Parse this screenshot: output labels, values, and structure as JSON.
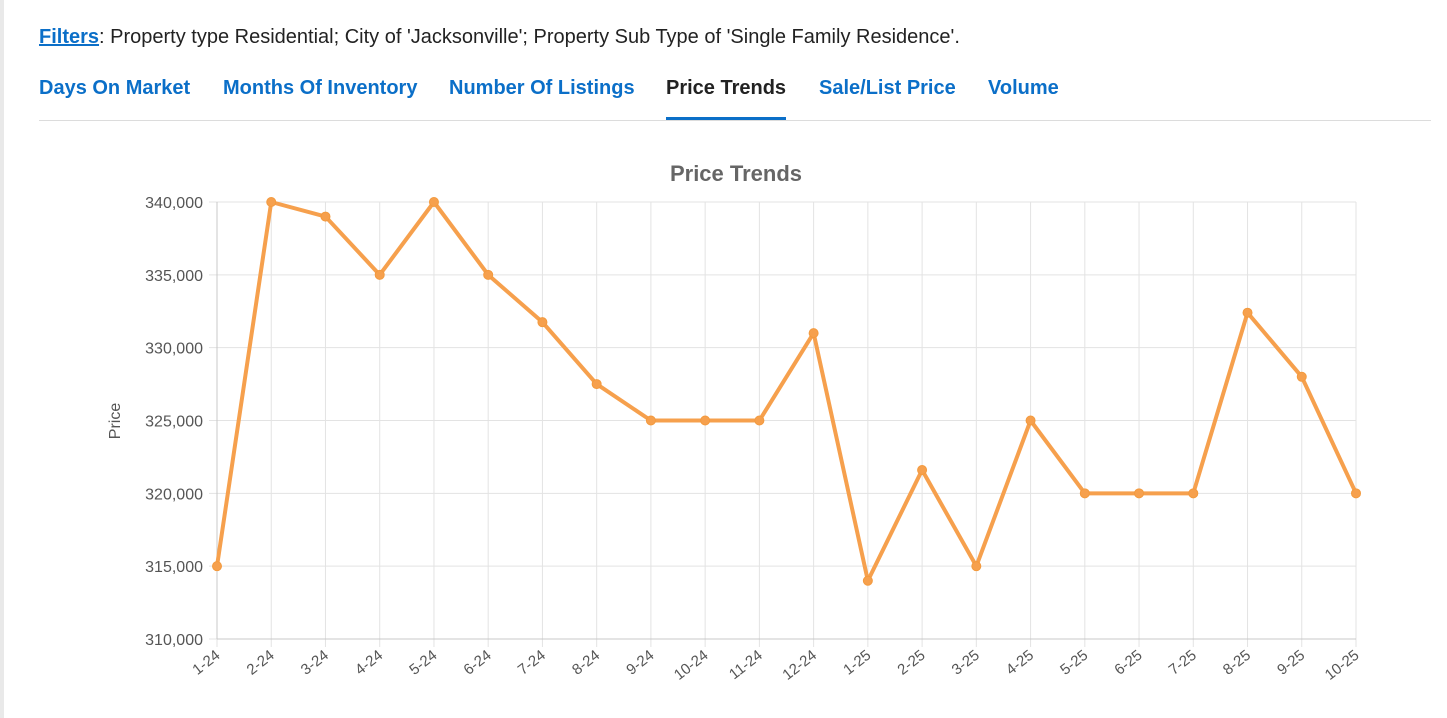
{
  "filters": {
    "link_label": "Filters",
    "text": ": Property type Residential; City of 'Jacksonville'; Property Sub Type of 'Single Family Residence'."
  },
  "tabs": [
    {
      "label": "Days On Market",
      "active": false
    },
    {
      "label": "Months Of Inventory",
      "active": false
    },
    {
      "label": "Number Of Listings",
      "active": false
    },
    {
      "label": "Price Trends",
      "active": true
    },
    {
      "label": "Sale/List Price",
      "active": false
    },
    {
      "label": "Volume",
      "active": false
    }
  ],
  "colors": {
    "accent": "#0b6fc8",
    "line": "#f6a04d",
    "grid": "#e3e3e3"
  },
  "chart_data": {
    "type": "line",
    "title": "Price Trends",
    "xlabel": "",
    "ylabel": "Price",
    "ylim": [
      310000,
      340000
    ],
    "yticks": [
      310000,
      315000,
      320000,
      325000,
      330000,
      335000,
      340000
    ],
    "ytick_labels": [
      "310,000",
      "315,000",
      "320,000",
      "325,000",
      "330,000",
      "335,000",
      "340,000"
    ],
    "grid": true,
    "categories": [
      "1-24",
      "2-24",
      "3-24",
      "4-24",
      "5-24",
      "6-24",
      "7-24",
      "8-24",
      "9-24",
      "10-24",
      "11-24",
      "12-24",
      "1-25",
      "2-25",
      "3-25",
      "4-25",
      "5-25",
      "6-25",
      "7-25",
      "8-25",
      "9-25",
      "10-25"
    ],
    "series": [
      {
        "values": [
          315000,
          340000,
          339000,
          335000,
          340000,
          335000,
          331750,
          327500,
          325000,
          325000,
          325000,
          331000,
          314000,
          321600,
          315000,
          325000,
          320000,
          320000,
          320000,
          332400,
          328000,
          320000
        ]
      }
    ]
  }
}
